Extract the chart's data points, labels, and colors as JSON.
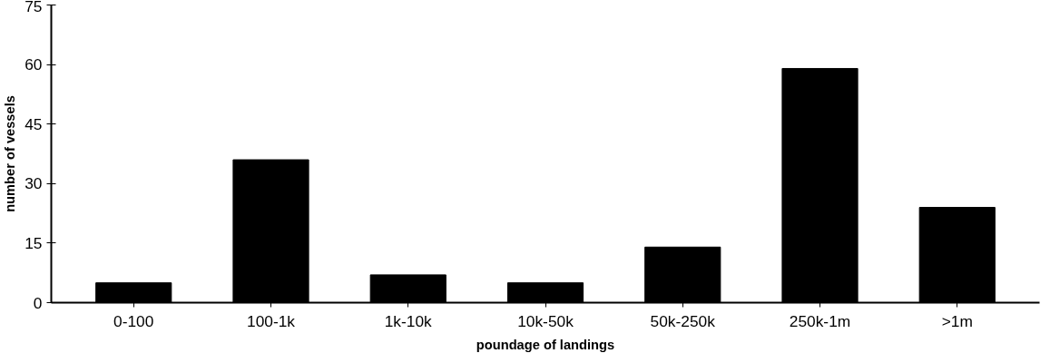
{
  "chart_data": {
    "type": "bar",
    "xlabel": "poundage of landings",
    "ylabel": "number of vessels",
    "categories": [
      "0-100",
      "100-1k",
      "1k-10k",
      "10k-50k",
      "50k-250k",
      "250k-1m",
      ">1m"
    ],
    "values": [
      5,
      36,
      7,
      5,
      14,
      59,
      24
    ],
    "color": "#000000",
    "ylim": [
      0,
      75
    ],
    "yticks": [
      0,
      15,
      30,
      45,
      60,
      75
    ],
    "grid": false
  }
}
